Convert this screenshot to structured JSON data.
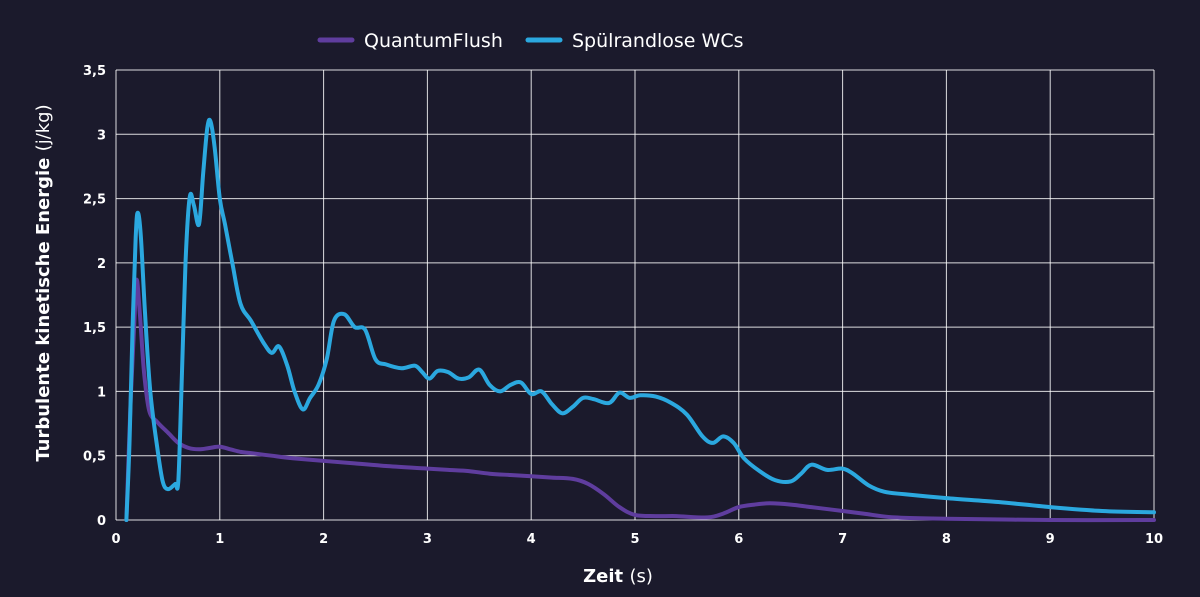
{
  "chart_data": {
    "type": "line",
    "xlabel": "Zeit",
    "xlabel_unit": "(s)",
    "ylabel": "Turbulente kinetische Energie",
    "ylabel_unit": "(j/kg)",
    "xlim": [
      0,
      10
    ],
    "ylim": [
      0,
      3.5
    ],
    "x_ticks": [
      0,
      1,
      2,
      3,
      4,
      5,
      6,
      7,
      8,
      9,
      10
    ],
    "x_tick_labels": [
      "0",
      "1",
      "2",
      "3",
      "4",
      "5",
      "6",
      "7",
      "8",
      "9",
      "10"
    ],
    "y_ticks": [
      0,
      0.5,
      1,
      1.5,
      2,
      2.5,
      3,
      3.5
    ],
    "y_tick_labels": [
      "0",
      "0,5",
      "1",
      "1,5",
      "2",
      "2,5",
      "3",
      "3,5"
    ],
    "grid": true,
    "legend_position": "top-center",
    "series": [
      {
        "name": "QuantumFlush",
        "color": "#5f3d9e",
        "points": [
          [
            0.1,
            0
          ],
          [
            0.14,
            0.9
          ],
          [
            0.18,
            1.6
          ],
          [
            0.2,
            1.87
          ],
          [
            0.23,
            1.6
          ],
          [
            0.27,
            1.15
          ],
          [
            0.32,
            0.85
          ],
          [
            0.4,
            0.76
          ],
          [
            0.5,
            0.68
          ],
          [
            0.6,
            0.6
          ],
          [
            0.7,
            0.56
          ],
          [
            0.8,
            0.55
          ],
          [
            0.9,
            0.56
          ],
          [
            1.0,
            0.57
          ],
          [
            1.1,
            0.55
          ],
          [
            1.2,
            0.53
          ],
          [
            1.3,
            0.52
          ],
          [
            1.5,
            0.5
          ],
          [
            1.7,
            0.48
          ],
          [
            2.0,
            0.46
          ],
          [
            2.3,
            0.44
          ],
          [
            2.6,
            0.42
          ],
          [
            3.0,
            0.4
          ],
          [
            3.2,
            0.39
          ],
          [
            3.4,
            0.38
          ],
          [
            3.6,
            0.36
          ],
          [
            3.8,
            0.35
          ],
          [
            4.0,
            0.34
          ],
          [
            4.2,
            0.33
          ],
          [
            4.4,
            0.32
          ],
          [
            4.55,
            0.28
          ],
          [
            4.7,
            0.2
          ],
          [
            4.85,
            0.1
          ],
          [
            5.0,
            0.04
          ],
          [
            5.2,
            0.03
          ],
          [
            5.4,
            0.03
          ],
          [
            5.7,
            0.02
          ],
          [
            5.85,
            0.05
          ],
          [
            6.0,
            0.1
          ],
          [
            6.15,
            0.12
          ],
          [
            6.3,
            0.13
          ],
          [
            6.5,
            0.12
          ],
          [
            6.7,
            0.1
          ],
          [
            6.9,
            0.08
          ],
          [
            7.2,
            0.05
          ],
          [
            7.5,
            0.02
          ],
          [
            8.0,
            0.01
          ],
          [
            9.0,
            0.0
          ],
          [
            10.0,
            0.0
          ]
        ]
      },
      {
        "name": "Spülrandlose WCs",
        "color": "#2ba8df",
        "points": [
          [
            0.1,
            0
          ],
          [
            0.13,
            0.6
          ],
          [
            0.16,
            1.5
          ],
          [
            0.19,
            2.2
          ],
          [
            0.21,
            2.39
          ],
          [
            0.24,
            2.2
          ],
          [
            0.28,
            1.6
          ],
          [
            0.33,
            1.0
          ],
          [
            0.4,
            0.55
          ],
          [
            0.45,
            0.3
          ],
          [
            0.5,
            0.24
          ],
          [
            0.57,
            0.28
          ],
          [
            0.6,
            0.3
          ],
          [
            0.63,
            1.0
          ],
          [
            0.67,
            2.0
          ],
          [
            0.71,
            2.51
          ],
          [
            0.75,
            2.45
          ],
          [
            0.8,
            2.3
          ],
          [
            0.84,
            2.7
          ],
          [
            0.88,
            3.05
          ],
          [
            0.91,
            3.1
          ],
          [
            0.95,
            2.9
          ],
          [
            1.0,
            2.5
          ],
          [
            1.05,
            2.3
          ],
          [
            1.12,
            2.0
          ],
          [
            1.2,
            1.68
          ],
          [
            1.3,
            1.55
          ],
          [
            1.42,
            1.38
          ],
          [
            1.5,
            1.3
          ],
          [
            1.57,
            1.35
          ],
          [
            1.65,
            1.2
          ],
          [
            1.72,
            1.0
          ],
          [
            1.8,
            0.86
          ],
          [
            1.87,
            0.95
          ],
          [
            1.95,
            1.05
          ],
          [
            2.03,
            1.25
          ],
          [
            2.1,
            1.55
          ],
          [
            2.2,
            1.6
          ],
          [
            2.3,
            1.5
          ],
          [
            2.4,
            1.48
          ],
          [
            2.5,
            1.25
          ],
          [
            2.6,
            1.21
          ],
          [
            2.75,
            1.18
          ],
          [
            2.88,
            1.2
          ],
          [
            2.95,
            1.15
          ],
          [
            3.02,
            1.1
          ],
          [
            3.1,
            1.16
          ],
          [
            3.2,
            1.15
          ],
          [
            3.3,
            1.1
          ],
          [
            3.4,
            1.11
          ],
          [
            3.5,
            1.17
          ],
          [
            3.6,
            1.05
          ],
          [
            3.7,
            1.0
          ],
          [
            3.8,
            1.05
          ],
          [
            3.9,
            1.07
          ],
          [
            4.0,
            0.98
          ],
          [
            4.1,
            1.0
          ],
          [
            4.2,
            0.9
          ],
          [
            4.3,
            0.83
          ],
          [
            4.4,
            0.88
          ],
          [
            4.5,
            0.95
          ],
          [
            4.6,
            0.94
          ],
          [
            4.75,
            0.91
          ],
          [
            4.85,
            0.99
          ],
          [
            4.95,
            0.95
          ],
          [
            5.05,
            0.97
          ],
          [
            5.2,
            0.96
          ],
          [
            5.35,
            0.91
          ],
          [
            5.5,
            0.82
          ],
          [
            5.65,
            0.65
          ],
          [
            5.75,
            0.6
          ],
          [
            5.85,
            0.65
          ],
          [
            5.95,
            0.6
          ],
          [
            6.05,
            0.48
          ],
          [
            6.2,
            0.38
          ],
          [
            6.35,
            0.31
          ],
          [
            6.5,
            0.3
          ],
          [
            6.6,
            0.36
          ],
          [
            6.7,
            0.43
          ],
          [
            6.85,
            0.39
          ],
          [
            7.0,
            0.4
          ],
          [
            7.1,
            0.36
          ],
          [
            7.25,
            0.27
          ],
          [
            7.4,
            0.22
          ],
          [
            7.6,
            0.2
          ],
          [
            8.0,
            0.17
          ],
          [
            8.5,
            0.14
          ],
          [
            9.0,
            0.1
          ],
          [
            9.5,
            0.07
          ],
          [
            10.0,
            0.06
          ]
        ]
      }
    ]
  }
}
